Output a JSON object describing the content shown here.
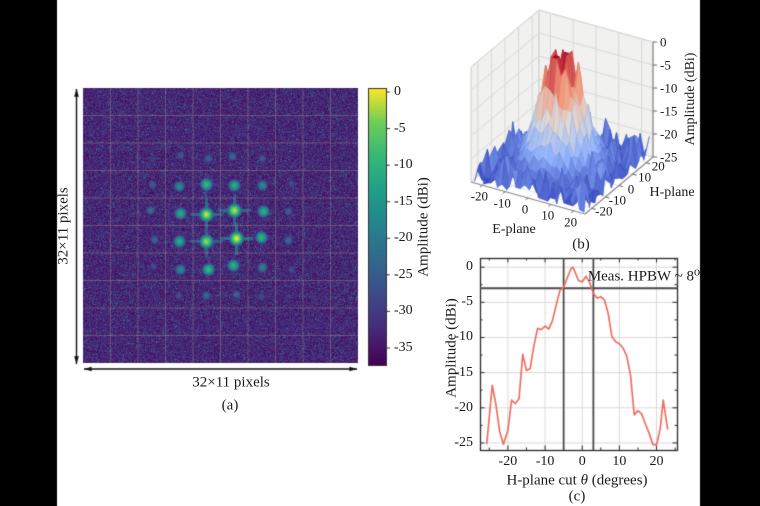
{
  "layout": {
    "background": "#ffffff",
    "side_bar_color": "#000000",
    "text_color": "#1b1b1b"
  },
  "chart_data": [
    {
      "id": "a",
      "type": "heatmap",
      "caption": "(a)",
      "width_label": "32×11 pixels",
      "height_label": "32×11 pixels",
      "colorbar_label": "Amplitude (dBi)",
      "colorbar_ticks": [
        0,
        -5,
        -10,
        -15,
        -20,
        -25,
        -30,
        -35
      ],
      "colormap": "viridis",
      "value_range_dbi": [
        -37.5,
        0
      ],
      "grid_cells": [
        10,
        10
      ],
      "noise_floor_dbi": -37.5,
      "spot_amplitudes_dbi": [
        [
          -37,
          -37,
          -36,
          -35,
          -35,
          -35,
          -35,
          -36,
          -37,
          -37
        ],
        [
          -37,
          -36,
          -34,
          -32,
          -31,
          -31,
          -32,
          -34,
          -36,
          -37
        ],
        [
          -36,
          -34,
          -31,
          -25,
          -22,
          -22,
          -25,
          -31,
          -34,
          -36
        ],
        [
          -35,
          -32,
          -25,
          -17,
          -10,
          -10,
          -17,
          -25,
          -32,
          -35
        ],
        [
          -35,
          -31,
          -22,
          -10,
          -1,
          -1,
          -10,
          -22,
          -31,
          -35
        ],
        [
          -35,
          -31,
          -22,
          -10,
          -1,
          -1,
          -10,
          -22,
          -31,
          -35
        ],
        [
          -35,
          -32,
          -25,
          -17,
          -10,
          -10,
          -17,
          -25,
          -32,
          -35
        ],
        [
          -36,
          -34,
          -31,
          -25,
          -22,
          -22,
          -25,
          -31,
          -34,
          -36
        ],
        [
          -37,
          -36,
          -34,
          -32,
          -31,
          -31,
          -32,
          -34,
          -36,
          -37
        ],
        [
          -37,
          -37,
          -36,
          -35,
          -35,
          -35,
          -35,
          -36,
          -37,
          -37
        ]
      ]
    },
    {
      "id": "b",
      "type": "surface3d",
      "caption": "(b)",
      "xlabel": "E-plane",
      "ylabel": "H-plane",
      "zlabel": "Amplitude (dBi)",
      "x_ticks": [
        -20,
        -10,
        0,
        10,
        20
      ],
      "y_ticks": [
        -20,
        -10,
        0,
        10,
        20
      ],
      "z_ticks": [
        0,
        -5,
        -10,
        -15,
        -20,
        -25
      ],
      "xlim": [
        -25,
        25
      ],
      "ylim": [
        -25,
        25
      ],
      "zlim": [
        -25,
        0
      ],
      "colormap": "coolwarm",
      "peak": {
        "center": [
          0,
          0
        ],
        "amplitude_dbi": 0
      },
      "noise_floor_dbi": -25
    },
    {
      "id": "c",
      "type": "line",
      "caption": "(c)",
      "xlabel_parts": {
        "prefix": "H-plane cut ",
        "theta": "θ",
        "suffix": " (degrees)"
      },
      "ylabel": "Amplitude (dBi)",
      "x_ticks": [
        -20,
        -10,
        0,
        10,
        20
      ],
      "y_ticks": [
        0,
        -5,
        -10,
        -15,
        -20,
        -25
      ],
      "xlim": [
        -27.5,
        25.5
      ],
      "ylim": [
        -26,
        1.3
      ],
      "annotation": "Meas. HPBW ~ 8⁰",
      "hpbw_deg": 8,
      "half_power_level_dbi": -3,
      "hpbw_marker_theta": [
        -5,
        3
      ],
      "line_color": "#ec7063",
      "marker_line_color": "#4a4a4a",
      "series": [
        {
          "name": "H-plane cut",
          "points": [
            [
              -25.7,
              -25.2
            ],
            [
              -24.2,
              -16.8
            ],
            [
              -23.2,
              -19.6
            ],
            [
              -22.2,
              -23.4
            ],
            [
              -21.2,
              -25.2
            ],
            [
              -20,
              -23.2
            ],
            [
              -19,
              -18.9
            ],
            [
              -18,
              -19.4
            ],
            [
              -17,
              -18.7
            ],
            [
              -16,
              -12.4
            ],
            [
              -15,
              -14.7
            ],
            [
              -14,
              -14.4
            ],
            [
              -13,
              -11.2
            ],
            [
              -12,
              -8.7
            ],
            [
              -11,
              -8.9
            ],
            [
              -10,
              -8.4
            ],
            [
              -9,
              -8.8
            ],
            [
              -8,
              -7.6
            ],
            [
              -7,
              -5.4
            ],
            [
              -6,
              -3.3
            ],
            [
              -5,
              -2.9
            ],
            [
              -4,
              -1.5
            ],
            [
              -3,
              -0.2
            ],
            [
              -2.5,
              0.0
            ],
            [
              -2,
              -0.6
            ],
            [
              -1,
              -1.9
            ],
            [
              0,
              -2.1
            ],
            [
              1,
              -1.3
            ],
            [
              2,
              -2.2
            ],
            [
              3,
              -3.7
            ],
            [
              4,
              -4.4
            ],
            [
              5,
              -4.2
            ],
            [
              6,
              -4.7
            ],
            [
              7,
              -6.6
            ],
            [
              8,
              -9.9
            ],
            [
              9,
              -10.6
            ],
            [
              10,
              -10.9
            ],
            [
              11,
              -11.5
            ],
            [
              12,
              -12.7
            ],
            [
              13,
              -15.4
            ],
            [
              14,
              -21.0
            ],
            [
              15,
              -20.4
            ],
            [
              16,
              -20.9
            ],
            [
              17,
              -22.3
            ],
            [
              18,
              -23.6
            ],
            [
              19,
              -25.2
            ],
            [
              20,
              -25.3
            ],
            [
              21,
              -22.9
            ],
            [
              21.8,
              -18.9
            ],
            [
              23,
              -23.1
            ]
          ]
        }
      ]
    }
  ]
}
